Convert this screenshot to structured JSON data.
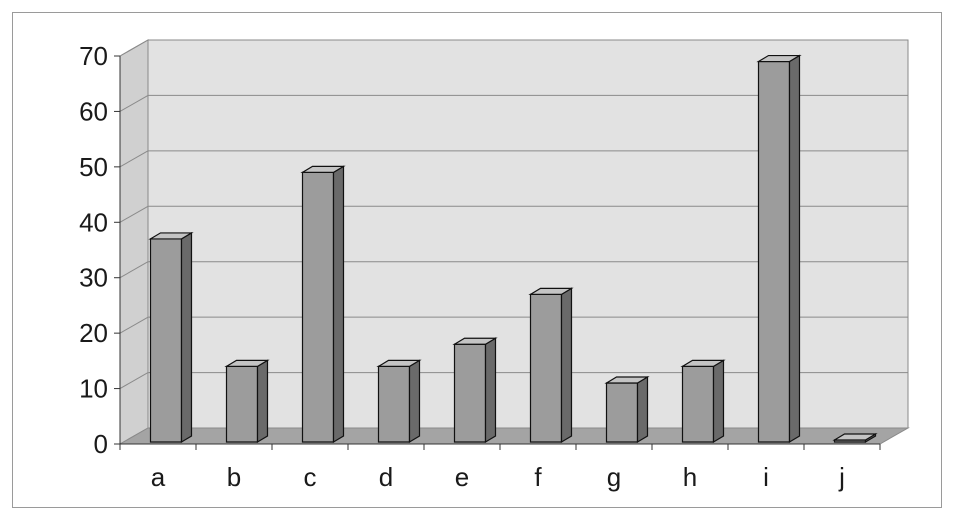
{
  "chart_data": {
    "type": "bar",
    "style": "3d-column",
    "categories": [
      "a",
      "b",
      "c",
      "d",
      "e",
      "f",
      "g",
      "h",
      "i",
      "j"
    ],
    "values": [
      37,
      14,
      49,
      14,
      18,
      27,
      11,
      14,
      69,
      0
    ],
    "yticks": [
      "0",
      "10",
      "20",
      "30",
      "40",
      "50",
      "60",
      "70"
    ],
    "ylim": [
      0,
      70
    ],
    "title": "",
    "xlabel": "",
    "ylabel": "",
    "grid": true,
    "legend": "none",
    "colors": {
      "bar_front": "#9c9c9c",
      "bar_side": "#6a6a6a",
      "bar_top": "#c4c4c4",
      "wall": "#e2e2e2",
      "floor": "#a4a4a4",
      "gridline": "#8a8a8a"
    }
  }
}
